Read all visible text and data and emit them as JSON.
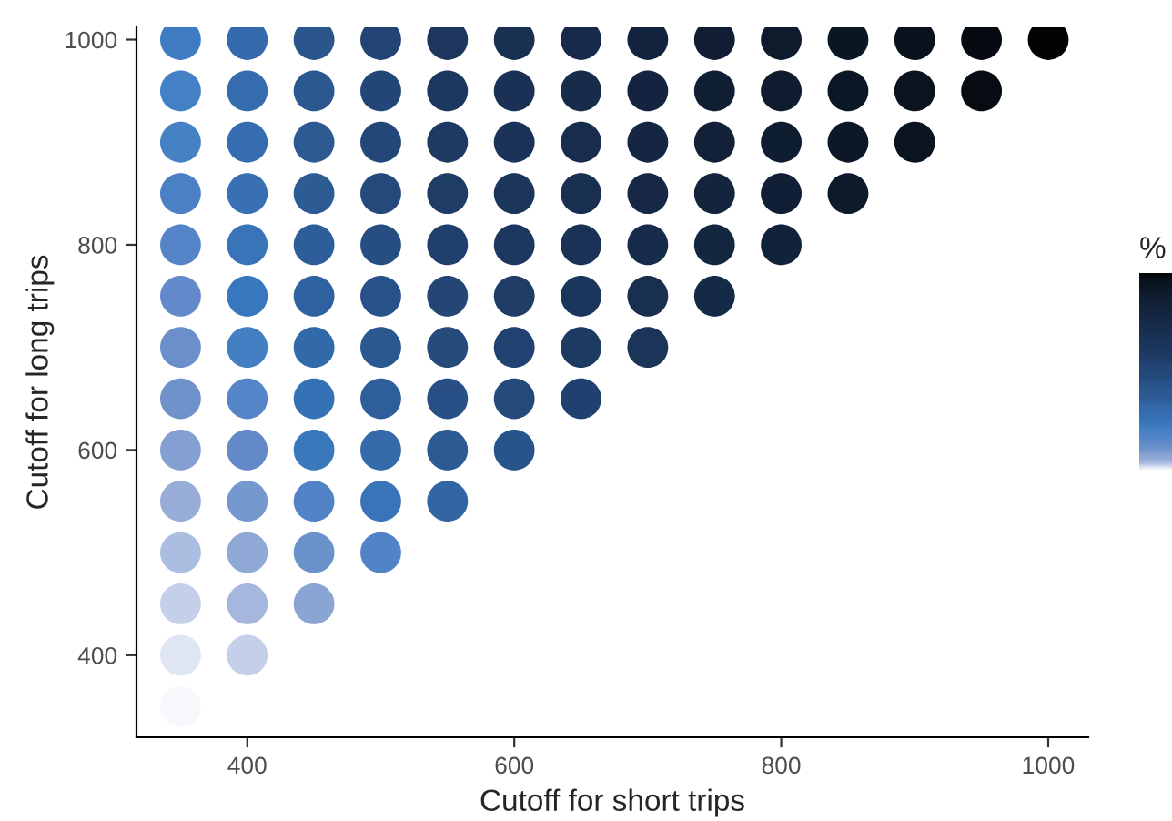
{
  "chart_data": {
    "type": "scatter",
    "xlabel": "Cutoff for short trips",
    "ylabel": "Cutoff for long trips",
    "clabel": "%",
    "marker": "circle",
    "grid": false,
    "legend": false,
    "xlim": [
      317,
      1030
    ],
    "ylim": [
      320,
      1012
    ],
    "xticks": [
      400,
      600,
      800,
      1000
    ],
    "yticks": [
      400,
      600,
      800,
      1000
    ],
    "series": [
      {
        "x": [
          350,
          350,
          350,
          350,
          350,
          350,
          350,
          350,
          350,
          350,
          350,
          350,
          350,
          350
        ],
        "values": [
          350,
          400,
          450,
          500,
          550,
          600,
          650,
          700,
          750,
          800,
          850,
          900,
          950,
          1000
        ],
        "colors": [
          "#f7f8fb",
          "#dfe5f2",
          "#c4d0ea",
          "#abbde0",
          "#97acd7",
          "#849fd2",
          "#7092cb",
          "#6a8fcb",
          "#6289c9",
          "#5585c8",
          "#4c80c5",
          "#4681c4",
          "#4480c5",
          "#3f7bc2"
        ]
      },
      {
        "x": [
          400,
          400,
          400,
          400,
          400,
          400,
          400,
          400,
          400,
          400,
          400,
          400,
          400
        ],
        "values": [
          400,
          450,
          500,
          550,
          600,
          650,
          700,
          750,
          800,
          850,
          900,
          950,
          1000
        ],
        "colors": [
          "#c4d0ea",
          "#a5b7de",
          "#8fa8d5",
          "#7598cf",
          "#6389c9",
          "#5585c8",
          "#457fc3",
          "#3777bd",
          "#3a74b8",
          "#3870b3",
          "#366db0",
          "#356cae",
          "#346aab"
        ]
      },
      {
        "x": [
          450,
          450,
          450,
          450,
          450,
          450,
          450,
          450,
          450,
          450,
          450,
          450
        ],
        "values": [
          450,
          500,
          550,
          600,
          650,
          700,
          750,
          800,
          850,
          900,
          950,
          1000
        ],
        "colors": [
          "#8aa4d4",
          "#6b92cb",
          "#5183c6",
          "#3a78bd",
          "#3571b5",
          "#3169a9",
          "#2f62a0",
          "#2e5e99",
          "#2d5b94",
          "#2c5a91",
          "#2b588f",
          "#2a568b"
        ]
      },
      {
        "x": [
          500,
          500,
          500,
          500,
          500,
          500,
          500,
          500,
          500,
          500,
          500
        ],
        "values": [
          500,
          550,
          600,
          650,
          700,
          750,
          800,
          850,
          900,
          950,
          1000
        ],
        "colors": [
          "#5184c6",
          "#3a74b8",
          "#3469aa",
          "#2f5f9b",
          "#2b5891",
          "#28528a",
          "#264e82",
          "#25497b",
          "#24477a",
          "#234678",
          "#224474"
        ]
      },
      {
        "x": [
          550,
          550,
          550,
          550,
          550,
          550,
          550,
          550,
          550,
          550
        ],
        "values": [
          550,
          600,
          650,
          700,
          750,
          800,
          850,
          900,
          950,
          1000
        ],
        "colors": [
          "#3266a3",
          "#2c5a92",
          "#285087",
          "#254a7c",
          "#234675",
          "#213f6c",
          "#1f3c66",
          "#1e3a63",
          "#1d3860",
          "#1c365d"
        ]
      },
      {
        "x": [
          600,
          600,
          600,
          600,
          600,
          600,
          600,
          600,
          600
        ],
        "values": [
          600,
          650,
          700,
          750,
          800,
          850,
          900,
          950,
          1000
        ],
        "colors": [
          "#27548a",
          "#244a7b",
          "#214270",
          "#1f3d67",
          "#1d3860",
          "#1c355b",
          "#1b3358",
          "#1a3155",
          "#1a3052"
        ]
      },
      {
        "x": [
          650,
          650,
          650,
          650,
          650,
          650,
          650,
          650
        ],
        "values": [
          650,
          700,
          750,
          800,
          850,
          900,
          950,
          1000
        ],
        "colors": [
          "#204070",
          "#1d3a63",
          "#1b365c",
          "#1a3256",
          "#192f51",
          "#182d4e",
          "#172b4b",
          "#172a49"
        ]
      },
      {
        "x": [
          700,
          700,
          700,
          700,
          700,
          700,
          700
        ],
        "values": [
          700,
          750,
          800,
          850,
          900,
          950,
          1000
        ],
        "colors": [
          "#1a3558",
          "#182f50",
          "#172b4a",
          "#162845",
          "#152642",
          "#142440",
          "#13223d"
        ]
      },
      {
        "x": [
          750,
          750,
          750,
          750,
          750,
          750
        ],
        "values": [
          750,
          800,
          850,
          900,
          950,
          1000
        ],
        "colors": [
          "#152a47",
          "#142740",
          "#13243c",
          "#122138",
          "#111f35",
          "#101d32"
        ]
      },
      {
        "x": [
          800,
          800,
          800,
          800,
          800
        ],
        "values": [
          800,
          850,
          900,
          950,
          1000
        ],
        "colors": [
          "#11223b",
          "#101f35",
          "#0f1d31",
          "#0f1c2f",
          "#0e1b2d"
        ]
      },
      {
        "x": [
          850,
          850,
          850,
          850
        ],
        "values": [
          850,
          900,
          950,
          1000
        ],
        "colors": [
          "#0d1a2c",
          "#0c1827",
          "#0c1725",
          "#0b1623"
        ]
      },
      {
        "x": [
          900,
          900,
          900
        ],
        "values": [
          900,
          950,
          1000
        ],
        "colors": [
          "#0a1421",
          "#0a131e",
          "#09121c"
        ]
      },
      {
        "x": [
          950,
          950
        ],
        "values": [
          950,
          1000
        ],
        "colors": [
          "#070c13",
          "#060b12"
        ]
      },
      {
        "x": [
          1000
        ],
        "values": [
          1000
        ],
        "colors": [
          "#020304"
        ]
      }
    ]
  }
}
